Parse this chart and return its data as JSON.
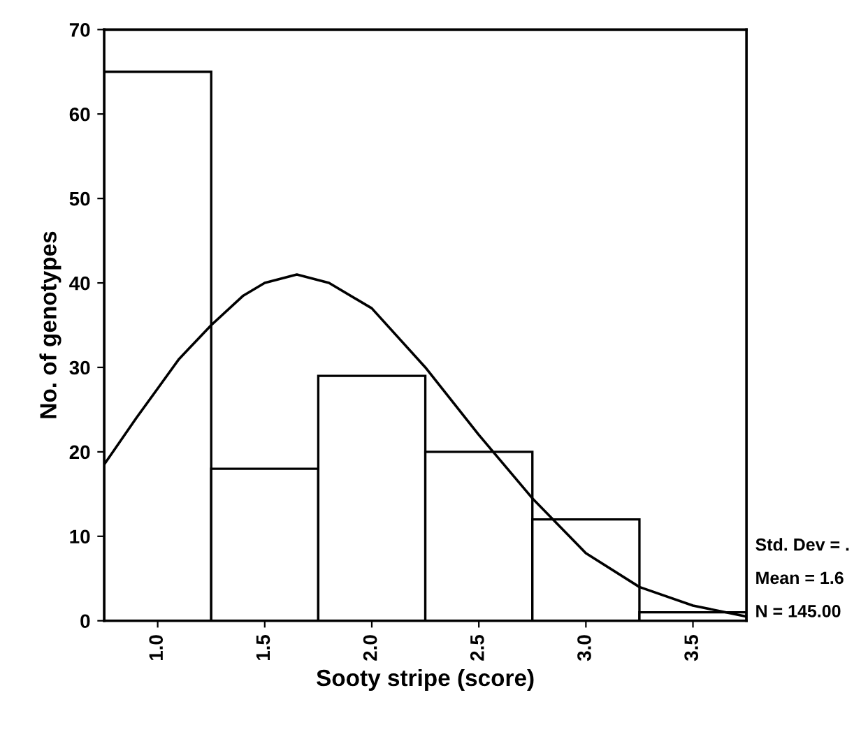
{
  "chart_data": {
    "type": "histogram",
    "xlabel": "Sooty stripe (score)",
    "ylabel": "No. of genotypes",
    "bins": [
      0.75,
      1.25,
      1.75,
      2.25,
      2.75,
      3.25,
      3.75
    ],
    "values": [
      65,
      18,
      29,
      20,
      12,
      1
    ],
    "color": "#ffffff",
    "series": [
      {
        "type": "line",
        "color": "#000000",
        "x": [
          0.75,
          0.9,
          1.0,
          1.1,
          1.25,
          1.4,
          1.5,
          1.65,
          1.8,
          2.0,
          2.25,
          2.5,
          2.75,
          3.0,
          3.25,
          3.5,
          3.75
        ],
        "values": [
          18.5,
          24,
          27.5,
          31,
          35,
          38.5,
          40,
          41,
          40,
          37,
          30,
          22,
          14.5,
          8,
          4,
          1.8,
          0.5
        ]
      }
    ],
    "xlim": [
      0.75,
      3.75
    ],
    "ylim": [
      0,
      70
    ],
    "xticks": [
      {
        "value": 1.0,
        "label": "1.0"
      },
      {
        "value": 1.5,
        "label": "1.5"
      },
      {
        "value": 2.0,
        "label": "2.0"
      },
      {
        "value": 2.5,
        "label": "2.5"
      },
      {
        "value": 3.0,
        "label": "3.0"
      },
      {
        "value": 3.5,
        "label": "3.5"
      }
    ],
    "yticks": [
      0,
      10,
      20,
      30,
      40,
      50,
      60,
      70
    ],
    "grid": false,
    "annotations": [
      "Std. Dev = .",
      "Mean = 1.6",
      "N = 145.00"
    ]
  }
}
